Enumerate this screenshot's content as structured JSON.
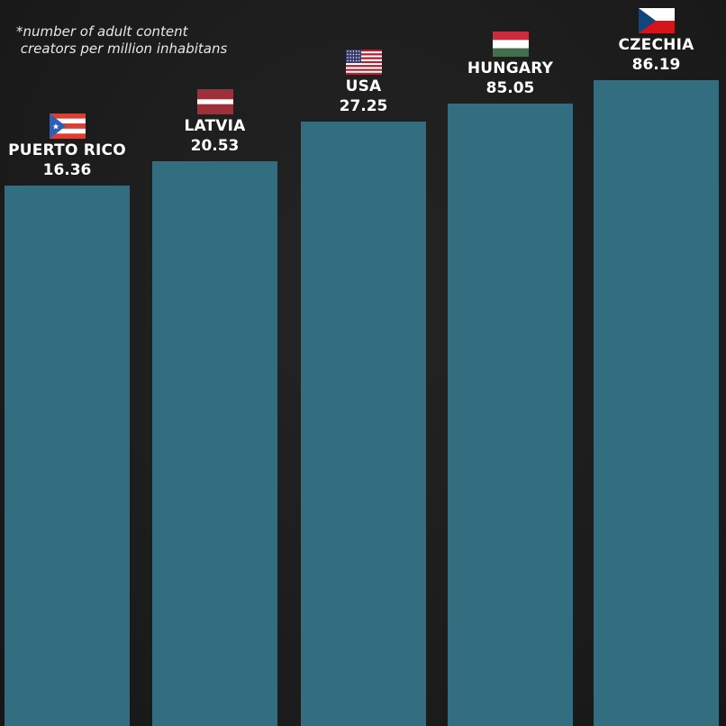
{
  "footnote": "*number of adult content\n creators per million inhabitans",
  "chart_data": {
    "type": "bar",
    "title": "",
    "note": "*number of adult content creators per million inhabitans",
    "categories": [
      "PUERTO RICO",
      "LATVIA",
      "USA",
      "HUNGARY",
      "CZECHIA"
    ],
    "values": [
      16.36,
      20.53,
      27.25,
      85.05,
      86.19
    ],
    "value_labels": [
      "16.36",
      "20.53",
      "27.25",
      "85.05",
      "86.19"
    ],
    "flags": [
      "puerto-rico-flag-icon",
      "latvia-flag-icon",
      "usa-flag-icon",
      "hungary-flag-icon",
      "czechia-flag-icon"
    ],
    "bar_color": "#336d80",
    "background_color": "#1c1c1c",
    "xlabel": "",
    "ylabel": ""
  }
}
